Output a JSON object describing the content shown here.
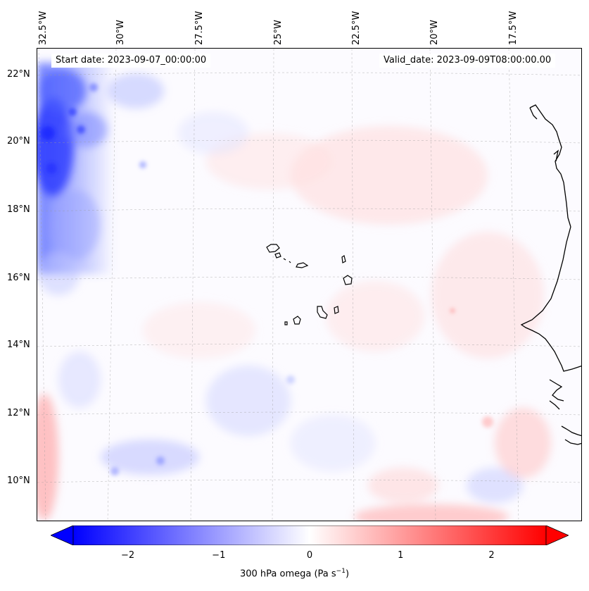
{
  "map": {
    "lon_labels": [
      "32.5°W",
      "30°W",
      "27.5°W",
      "25°W",
      "22.5°W",
      "20°W",
      "17.5°W"
    ],
    "lat_labels": [
      "22°N",
      "20°N",
      "18°N",
      "16°N",
      "14°N",
      "12°N",
      "10°N"
    ],
    "start_date": "Start date: 2023-09-07_00:00:00",
    "valid_date": "Valid_date: 2023-09-09T08:00:00.00",
    "field": "300 hPa omega",
    "extent": {
      "lon": [
        -32.6,
        -15.4
      ],
      "lat": [
        8.9,
        22.7
      ]
    }
  },
  "colorbar": {
    "ticks": [
      "−2",
      "−1",
      "0",
      "1",
      "2"
    ],
    "tick_values": [
      -2,
      -1,
      0,
      1,
      2
    ],
    "range": [
      -2.6,
      2.6
    ],
    "label": "300 hPa omega (Pa s",
    "label_sup": "−1",
    "label_close": ")",
    "colormap": "bwr",
    "low_color": "#0000ff",
    "mid_color": "#ffffff",
    "high_color": "#ff0000"
  }
}
